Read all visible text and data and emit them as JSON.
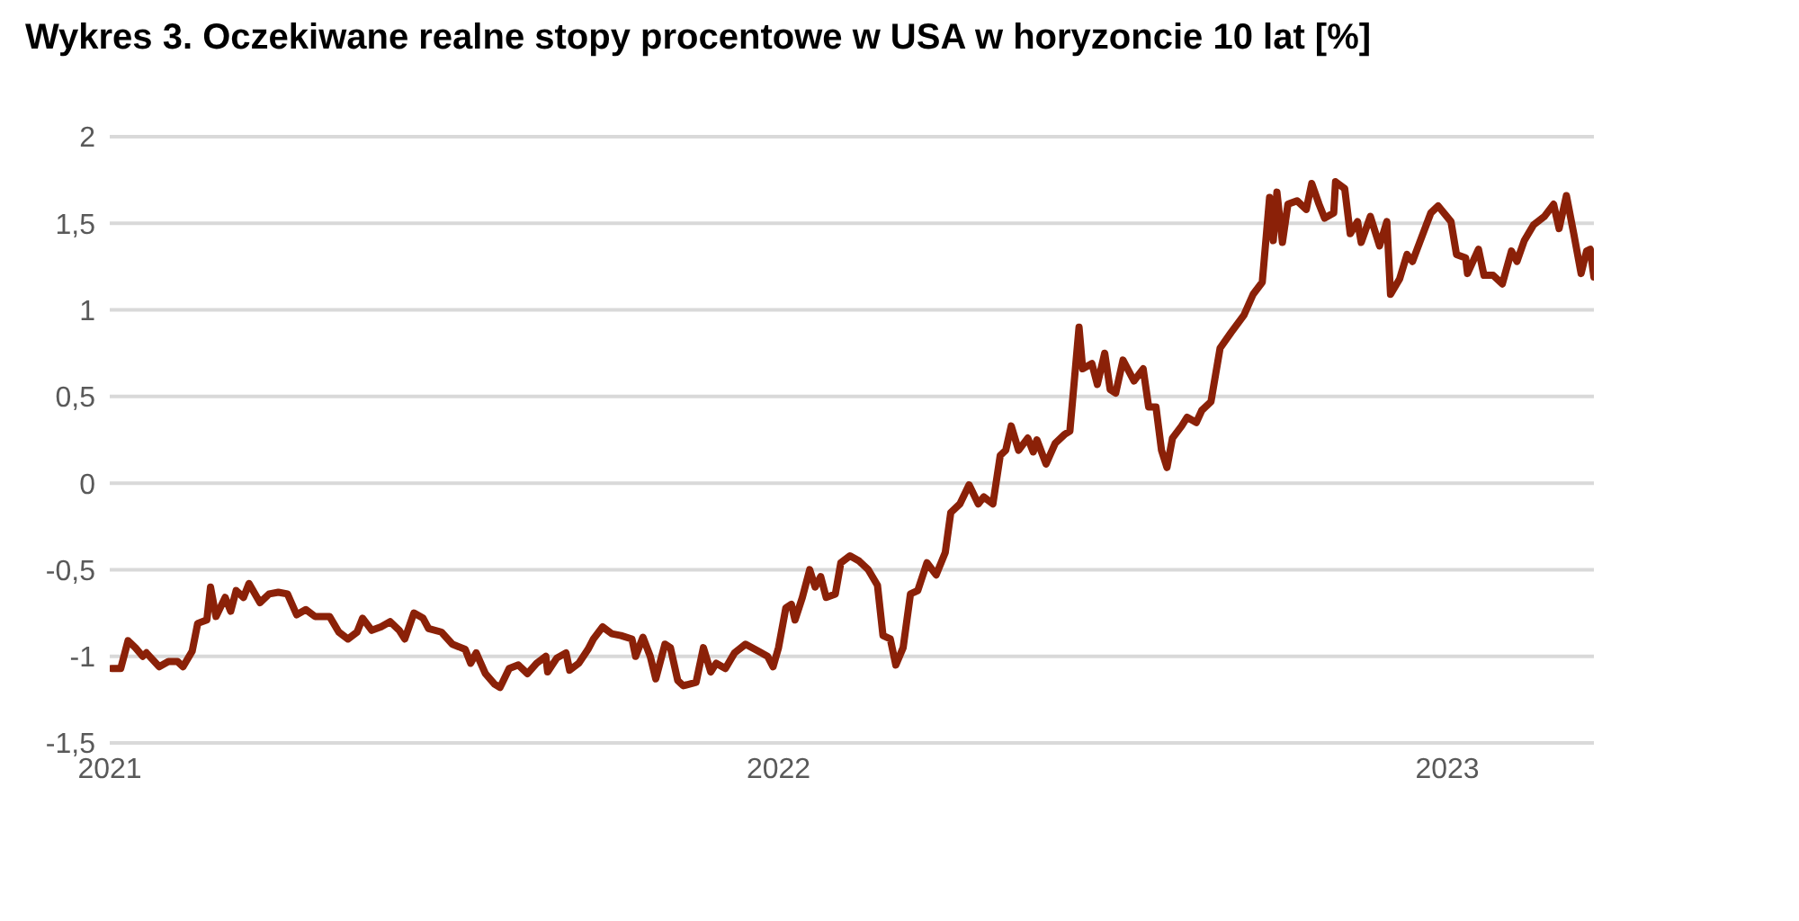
{
  "chart_data": {
    "type": "line",
    "title": "Wykres 3. Oczekiwane realne stopy procentowe w USA w horyzoncie 10 lat [%]",
    "xlim": [
      "2021-01-01",
      "2023-03-22"
    ],
    "xticks": [
      "2021",
      "2022",
      "2023"
    ],
    "ylim": [
      -1.5,
      2
    ],
    "yticks": [
      {
        "value": -1.5,
        "label": "-1,5"
      },
      -1,
      {
        "value": -0.5,
        "label": "-0,5"
      },
      0,
      {
        "value": 0.5,
        "label": "0,5"
      },
      1,
      {
        "value": 1.5,
        "label": "1,5"
      },
      2
    ],
    "grid": "y",
    "line_style": "solid",
    "marker": "none",
    "x": [
      "2021-01-02",
      "2021-01-07",
      "2021-01-11",
      "2021-01-15",
      "2021-01-19",
      "2021-01-21",
      "2021-01-28",
      "2021-02-02",
      "2021-02-07",
      "2021-02-10",
      "2021-02-15",
      "2021-02-18",
      "2021-02-23",
      "2021-02-25",
      "2021-02-28",
      "2021-03-05",
      "2021-03-08",
      "2021-03-11",
      "2021-03-15",
      "2021-03-18",
      "2021-03-24",
      "2021-03-29",
      "2021-04-03",
      "2021-04-08",
      "2021-04-13",
      "2021-04-18",
      "2021-04-23",
      "2021-05-01",
      "2021-05-06",
      "2021-05-11",
      "2021-05-16",
      "2021-05-19",
      "2021-05-24",
      "2021-05-29",
      "2021-06-03",
      "2021-06-08",
      "2021-06-11",
      "2021-06-16",
      "2021-06-21",
      "2021-06-24",
      "2021-07-01",
      "2021-07-07",
      "2021-07-14",
      "2021-07-17",
      "2021-07-20",
      "2021-07-25",
      "2021-07-30",
      "2021-08-02",
      "2021-08-07",
      "2021-08-12",
      "2021-08-17",
      "2021-08-22",
      "2021-08-27",
      "2021-08-28",
      "2021-09-02",
      "2021-09-07",
      "2021-09-09",
      "2021-09-14",
      "2021-09-19",
      "2021-09-22",
      "2021-09-27",
      "2021-10-02",
      "2021-10-07",
      "2021-10-13",
      "2021-10-15",
      "2021-10-19",
      "2021-10-23",
      "2021-10-26",
      "2021-10-31",
      "2021-11-03",
      "2021-11-07",
      "2021-11-10",
      "2021-11-17",
      "2021-11-21",
      "2021-11-25",
      "2021-11-28",
      "2021-12-03",
      "2021-12-08",
      "2021-12-14",
      "2021-12-21",
      "2021-12-26",
      "2021-12-29",
      "2022-01-01",
      "2022-01-05",
      "2022-01-08",
      "2022-01-10",
      "2022-01-14",
      "2022-01-18",
      "2022-01-21",
      "2022-01-24",
      "2022-01-27",
      "2022-02-01",
      "2022-02-04",
      "2022-02-09",
      "2022-02-14",
      "2022-02-19",
      "2022-02-24",
      "2022-02-27",
      "2022-03-03",
      "2022-03-06",
      "2022-03-10",
      "2022-03-14",
      "2022-03-18",
      "2022-03-23",
      "2022-03-28",
      "2022-04-02",
      "2022-04-05",
      "2022-04-10",
      "2022-04-15",
      "2022-04-20",
      "2022-04-23",
      "2022-04-28",
      "2022-05-02",
      "2022-05-05",
      "2022-05-08",
      "2022-05-12",
      "2022-05-17",
      "2022-05-20",
      "2022-05-22",
      "2022-05-27",
      "2022-06-01",
      "2022-06-06",
      "2022-06-09",
      "2022-06-14",
      "2022-06-16",
      "2022-06-21",
      "2022-06-24",
      "2022-06-28",
      "2022-07-01",
      "2022-07-04",
      "2022-07-08",
      "2022-07-14",
      "2022-07-19",
      "2022-07-22",
      "2022-07-26",
      "2022-07-29",
      "2022-08-01",
      "2022-08-04",
      "2022-08-09",
      "2022-08-12",
      "2022-08-17",
      "2022-08-20",
      "2022-08-25",
      "2022-08-30",
      "2022-09-05",
      "2022-09-12",
      "2022-09-17",
      "2022-09-22",
      "2022-09-26",
      "2022-09-28",
      "2022-09-30",
      "2022-10-03",
      "2022-10-06",
      "2022-10-11",
      "2022-10-16",
      "2022-10-19",
      "2022-10-23",
      "2022-10-26",
      "2022-10-31",
      "2022-11-01",
      "2022-11-06",
      "2022-11-09",
      "2022-11-13",
      "2022-11-15",
      "2022-11-20",
      "2022-11-25",
      "2022-11-29",
      "2022-12-01",
      "2022-12-06",
      "2022-12-10",
      "2022-12-13",
      "2022-12-18",
      "2022-12-23",
      "2022-12-27",
      "2023-01-03",
      "2023-01-06",
      "2023-01-11",
      "2023-01-12",
      "2023-01-18",
      "2023-01-21",
      "2023-01-26",
      "2023-01-31",
      "2023-02-05",
      "2023-02-08",
      "2023-02-12",
      "2023-02-17",
      "2023-02-23",
      "2023-02-28",
      "2023-03-03",
      "2023-03-07",
      "2023-03-11",
      "2023-03-15",
      "2023-03-18",
      "2023-03-20",
      "2023-03-22"
    ],
    "series": [
      {
        "color": "#8b2108",
        "values": [
          -1.07,
          -1.07,
          -0.91,
          -0.95,
          -1.0,
          -0.98,
          -1.06,
          -1.03,
          -1.03,
          -1.06,
          -0.97,
          -0.81,
          -0.79,
          -0.6,
          -0.77,
          -0.66,
          -0.74,
          -0.62,
          -0.66,
          -0.58,
          -0.69,
          -0.64,
          -0.63,
          -0.64,
          -0.76,
          -0.73,
          -0.77,
          -0.77,
          -0.86,
          -0.9,
          -0.86,
          -0.78,
          -0.85,
          -0.83,
          -0.8,
          -0.85,
          -0.9,
          -0.75,
          -0.78,
          -0.84,
          -0.86,
          -0.93,
          -0.96,
          -1.04,
          -0.98,
          -1.1,
          -1.16,
          -1.18,
          -1.07,
          -1.05,
          -1.1,
          -1.04,
          -1.0,
          -1.09,
          -1.01,
          -0.98,
          -1.08,
          -1.04,
          -0.96,
          -0.9,
          -0.83,
          -0.87,
          -0.88,
          -0.9,
          -1.0,
          -0.89,
          -1.0,
          -1.13,
          -0.93,
          -0.95,
          -1.14,
          -1.17,
          -1.15,
          -0.95,
          -1.09,
          -1.04,
          -1.07,
          -0.98,
          -0.93,
          -0.97,
          -1.0,
          -1.06,
          -0.95,
          -0.72,
          -0.7,
          -0.79,
          -0.66,
          -0.5,
          -0.6,
          -0.54,
          -0.66,
          -0.64,
          -0.46,
          -0.42,
          -0.45,
          -0.5,
          -0.59,
          -0.88,
          -0.9,
          -1.05,
          -0.95,
          -0.64,
          -0.62,
          -0.46,
          -0.53,
          -0.4,
          -0.17,
          -0.12,
          -0.01,
          -0.12,
          -0.08,
          -0.12,
          0.16,
          0.19,
          0.33,
          0.19,
          0.26,
          0.18,
          0.25,
          0.11,
          0.23,
          0.28,
          0.3,
          0.9,
          0.66,
          0.69,
          0.57,
          0.75,
          0.54,
          0.52,
          0.71,
          0.59,
          0.66,
          0.44,
          0.44,
          0.19,
          0.09,
          0.26,
          0.33,
          0.38,
          0.35,
          0.42,
          0.47,
          0.78,
          0.87,
          0.97,
          1.09,
          1.16,
          1.65,
          1.4,
          1.68,
          1.39,
          1.61,
          1.63,
          1.58,
          1.73,
          1.61,
          1.53,
          1.56,
          1.74,
          1.7,
          1.44,
          1.51,
          1.39,
          1.54,
          1.37,
          1.51,
          1.09,
          1.18,
          1.32,
          1.28,
          1.42,
          1.56,
          1.6,
          1.51,
          1.32,
          1.3,
          1.21,
          1.35,
          1.2,
          1.2,
          1.15,
          1.34,
          1.28,
          1.4,
          1.49,
          1.54,
          1.61,
          1.47,
          1.66,
          1.44,
          1.21,
          1.34,
          1.35,
          1.19
        ]
      }
    ]
  }
}
